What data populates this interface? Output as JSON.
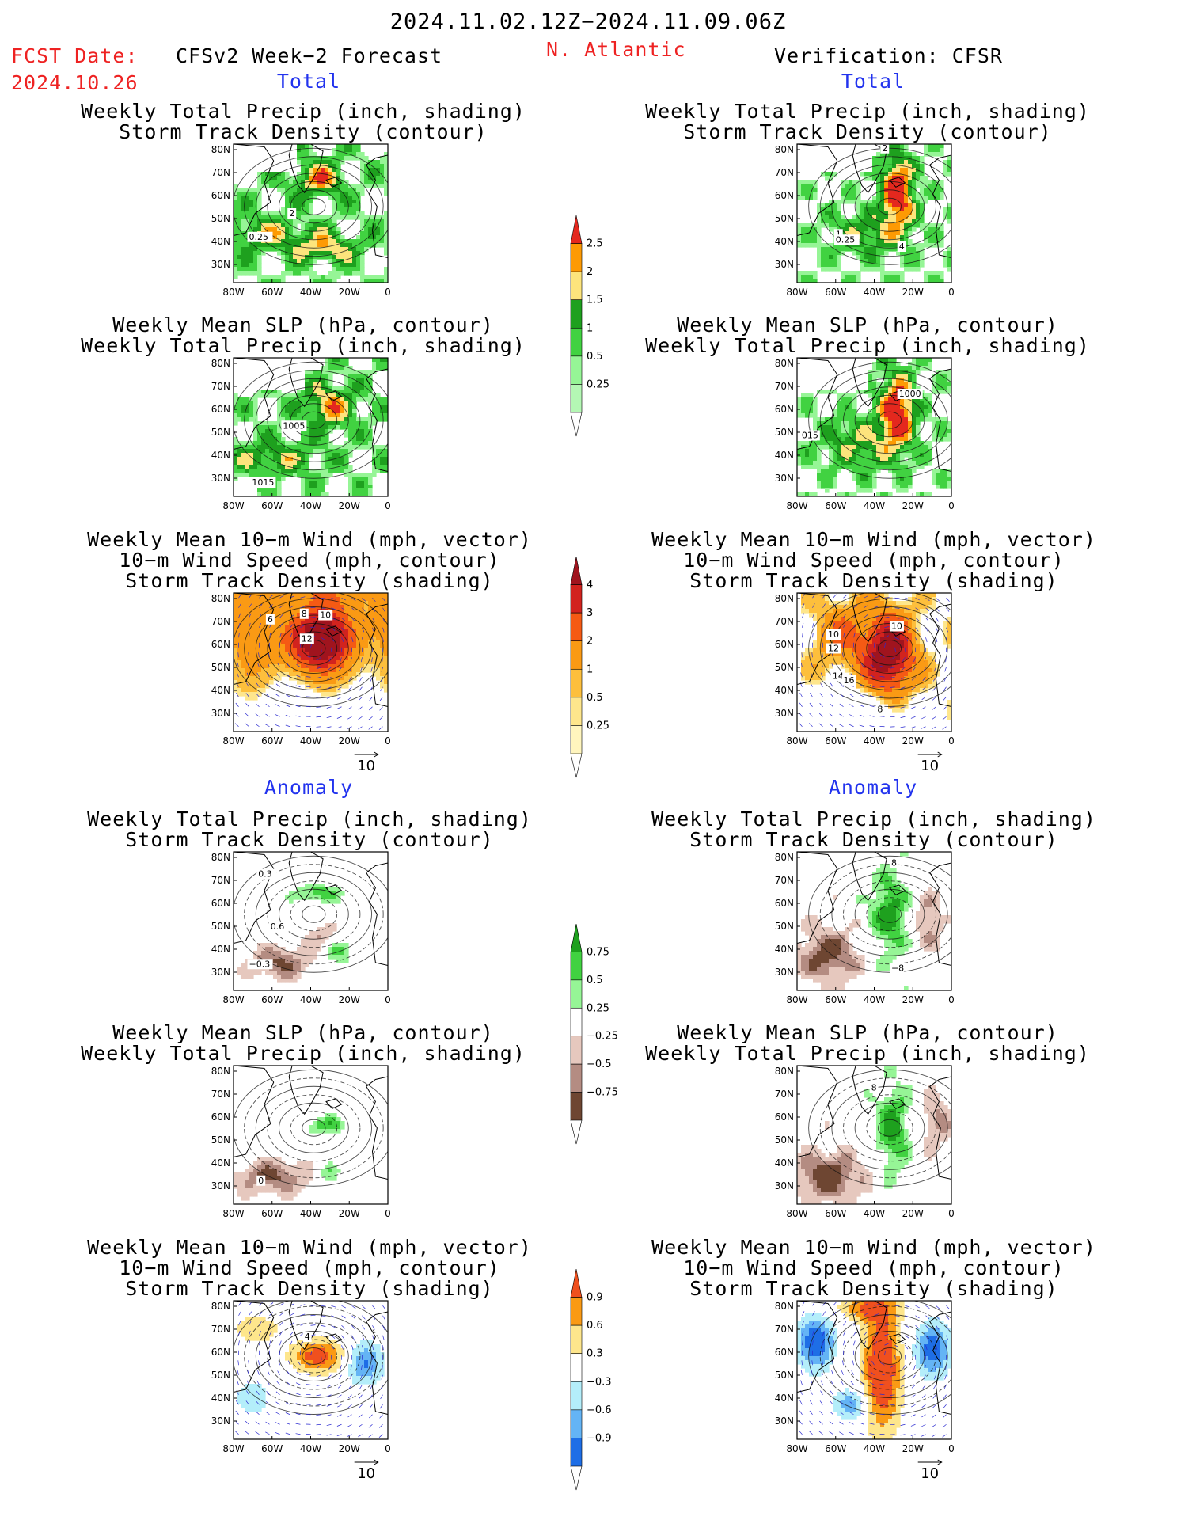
{
  "header": {
    "period": "2024.11.02.12Z−2024.11.09.06Z",
    "fcst_label": "FCST Date:",
    "fcst_date": "2024.10.26",
    "model": "CFSv2 Week−2 Forecast",
    "region": "N. Atlantic",
    "verification": "Verification: CFSR"
  },
  "sections": {
    "total": "Total",
    "anomaly": "Anomaly"
  },
  "panel_titles": {
    "precip_track": [
      "Weekly Total Precip (inch, shading)",
      "Storm Track Density (contour)"
    ],
    "slp_precip": [
      "Weekly Mean SLP (hPa, contour)",
      "Weekly Total Precip (inch, shading)"
    ],
    "wind_track": [
      "Weekly Mean 10−m Wind (mph, vector)",
      "10−m Wind Speed (mph, contour)",
      "Storm Track Density (shading)"
    ]
  },
  "axes": {
    "lat_ticks": [
      "80N",
      "70N",
      "60N",
      "50N",
      "40N",
      "30N"
    ],
    "lon_ticks": [
      "80W",
      "60W",
      "40W",
      "20W",
      "0"
    ],
    "vector_ref": "10"
  },
  "contour_labels": {
    "p1": [
      "2",
      "0.25"
    ],
    "p2": [
      "1005",
      "1015"
    ],
    "p3": [
      "6",
      "8",
      "10",
      "12"
    ],
    "p4": [
      "2",
      "1",
      "0.25",
      "4"
    ],
    "p5": [
      "1000",
      "015"
    ],
    "p6": [
      "10",
      "10",
      "12",
      "14",
      "16",
      "8"
    ],
    "p7": [
      "0.3",
      "0.6",
      "−0.3"
    ],
    "p8": [
      "0"
    ],
    "p9": [
      "4"
    ],
    "p10": [
      "8",
      "−8"
    ],
    "p11": [
      "8"
    ]
  },
  "colorbars": {
    "precip": {
      "labels": [
        "2.5",
        "2",
        "1.5",
        "1",
        "0.5",
        "0.25"
      ],
      "colors": [
        "#e4281e",
        "#fd9a04",
        "#fde47c",
        "#1ea01e",
        "#41d241",
        "#96f596",
        "#b4f7b4"
      ]
    },
    "track": {
      "labels": [
        "4",
        "3",
        "2",
        "1",
        "0.5",
        "0.25"
      ],
      "colors": [
        "#a0141e",
        "#d2231e",
        "#f55a14",
        "#fa9a14",
        "#fdbf3c",
        "#fee68c",
        "#fff5be"
      ]
    },
    "precip_anom": {
      "labels": [
        "0.75",
        "0.5",
        "0.25",
        "−0.25",
        "−0.5",
        "−0.75"
      ],
      "colors": [
        "#1ea01e",
        "#41d241",
        "#96f596",
        "#ffffff",
        "#e6c8be",
        "#b48c82",
        "#6e4632"
      ]
    },
    "track_anom": {
      "labels": [
        "0.9",
        "0.6",
        "0.3",
        "−0.3",
        "−0.6",
        "−0.9"
      ],
      "colors": [
        "#f0501e",
        "#fa9a14",
        "#fee68c",
        "#ffffff",
        "#b4eefa",
        "#64b4f5",
        "#1e6ee6"
      ]
    }
  },
  "chart_data": {
    "type": "heatmap",
    "title": "2024.11.02.12Z−2024.11.09.06Z",
    "domain": {
      "lon_range": [
        -80,
        0
      ],
      "lat_range": [
        25,
        85
      ]
    },
    "panels": [
      {
        "column": "CFSv2 Week−2 Forecast",
        "section": "Total",
        "fields": [
          "Weekly Total Precip (inch, shading)",
          "Storm Track Density (contour)"
        ]
      },
      {
        "column": "CFSv2 Week−2 Forecast",
        "section": "Total",
        "fields": [
          "Weekly Mean SLP (hPa, contour)",
          "Weekly Total Precip (inch, shading)"
        ]
      },
      {
        "column": "CFSv2 Week−2 Forecast",
        "section": "Total",
        "fields": [
          "Weekly Mean 10−m Wind (mph, vector)",
          "10−m Wind Speed (mph, contour)",
          "Storm Track Density (shading)"
        ]
      },
      {
        "column": "Verification: CFSR",
        "section": "Total",
        "fields": [
          "Weekly Total Precip (inch, shading)",
          "Storm Track Density (contour)"
        ]
      },
      {
        "column": "Verification: CFSR",
        "section": "Total",
        "fields": [
          "Weekly Mean SLP (hPa, contour)",
          "Weekly Total Precip (inch, shading)"
        ]
      },
      {
        "column": "Verification: CFSR",
        "section": "Total",
        "fields": [
          "Weekly Mean 10−m Wind (mph, vector)",
          "10−m Wind Speed (mph, contour)",
          "Storm Track Density (shading)"
        ]
      },
      {
        "column": "CFSv2 Week−2 Forecast",
        "section": "Anomaly",
        "fields": [
          "Weekly Total Precip (inch, shading)",
          "Storm Track Density (contour)"
        ]
      },
      {
        "column": "CFSv2 Week−2 Forecast",
        "section": "Anomaly",
        "fields": [
          "Weekly Mean SLP (hPa, contour)",
          "Weekly Total Precip (inch, shading)"
        ]
      },
      {
        "column": "CFSv2 Week−2 Forecast",
        "section": "Anomaly",
        "fields": [
          "Weekly Mean 10−m Wind (mph, vector)",
          "10−m Wind Speed (mph, contour)",
          "Storm Track Density (shading)"
        ]
      },
      {
        "column": "Verification: CFSR",
        "section": "Anomaly",
        "fields": [
          "Weekly Total Precip (inch, shading)",
          "Storm Track Density (contour)"
        ]
      },
      {
        "column": "Verification: CFSR",
        "section": "Anomaly",
        "fields": [
          "Weekly Mean SLP (hPa, contour)",
          "Weekly Total Precip (inch, shading)"
        ]
      },
      {
        "column": "Verification: CFSR",
        "section": "Anomaly",
        "fields": [
          "Weekly Mean 10−m Wind (mph, vector)",
          "10−m Wind Speed (mph, contour)",
          "Storm Track Density (shading)"
        ]
      }
    ]
  }
}
